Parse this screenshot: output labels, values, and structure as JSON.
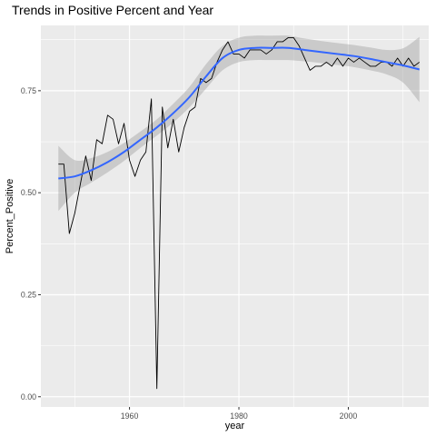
{
  "chart_data": {
    "type": "line",
    "title": "Trends in Positive Percent and Year",
    "xlabel": "year",
    "ylabel": "Percent_Positive",
    "xlim": [
      1943.8,
      2014.7
    ],
    "ylim": [
      -0.025,
      0.91
    ],
    "x_ticks": [
      1960,
      1980,
      2000
    ],
    "x_tick_labels": [
      "1960",
      "1980",
      "2000"
    ],
    "x_minor_ticks": [
      1950,
      1970,
      1990,
      2010
    ],
    "y_ticks": [
      0,
      0.25,
      0.5,
      0.75
    ],
    "y_tick_labels": [
      "0.00",
      "0.25",
      "0.50",
      "0.75"
    ],
    "y_minor_ticks": [
      0.125,
      0.375,
      0.625,
      0.875
    ],
    "grid": true,
    "legend": "none",
    "colors": {
      "panel": "#ebebeb",
      "grid": "#ffffff",
      "observed": "#000000",
      "smooth": "#3366ff",
      "ribbon": "#999999"
    },
    "series": [
      {
        "kind": "observed-line",
        "x": [
          1947,
          1948,
          1949,
          1950,
          1951,
          1952,
          1953,
          1954,
          1955,
          1956,
          1957,
          1958,
          1959,
          1960,
          1961,
          1962,
          1963,
          1964,
          1965,
          1966,
          1967,
          1968,
          1969,
          1970,
          1971,
          1972,
          1973,
          1974,
          1975,
          1976,
          1977,
          1978,
          1979,
          1980,
          1981,
          1982,
          1983,
          1984,
          1985,
          1986,
          1987,
          1988,
          1989,
          1990,
          1991,
          1992,
          1993,
          1994,
          1995,
          1996,
          1997,
          1998,
          1999,
          2000,
          2001,
          2002,
          2003,
          2004,
          2005,
          2006,
          2007,
          2008,
          2009,
          2010,
          2011,
          2012,
          2013
        ],
        "y": [
          0.57,
          0.57,
          0.4,
          0.45,
          0.52,
          0.59,
          0.53,
          0.63,
          0.62,
          0.69,
          0.68,
          0.62,
          0.67,
          0.58,
          0.54,
          0.58,
          0.6,
          0.73,
          0.02,
          0.71,
          0.61,
          0.68,
          0.6,
          0.66,
          0.7,
          0.71,
          0.78,
          0.77,
          0.78,
          0.82,
          0.85,
          0.87,
          0.84,
          0.84,
          0.83,
          0.85,
          0.85,
          0.85,
          0.84,
          0.85,
          0.87,
          0.87,
          0.88,
          0.88,
          0.86,
          0.83,
          0.8,
          0.81,
          0.81,
          0.82,
          0.81,
          0.83,
          0.81,
          0.83,
          0.82,
          0.83,
          0.82,
          0.81,
          0.81,
          0.82,
          0.82,
          0.81,
          0.83,
          0.81,
          0.83,
          0.81,
          0.82
        ]
      },
      {
        "kind": "smooth",
        "x": [
          1947,
          1950,
          1953,
          1956,
          1959,
          1962,
          1965,
          1968,
          1971,
          1974,
          1977,
          1980,
          1983,
          1986,
          1989,
          1992,
          1995,
          1998,
          2001,
          2004,
          2007,
          2010,
          2013
        ],
        "y": [
          0.535,
          0.54,
          0.555,
          0.575,
          0.6,
          0.63,
          0.66,
          0.695,
          0.735,
          0.785,
          0.83,
          0.85,
          0.855,
          0.855,
          0.855,
          0.85,
          0.845,
          0.84,
          0.835,
          0.828,
          0.82,
          0.812,
          0.802
        ],
        "ci_lower": [
          0.455,
          0.5,
          0.525,
          0.55,
          0.578,
          0.61,
          0.64,
          0.672,
          0.71,
          0.755,
          0.8,
          0.82,
          0.825,
          0.825,
          0.825,
          0.822,
          0.818,
          0.813,
          0.808,
          0.8,
          0.79,
          0.77,
          0.722
        ],
        "ci_upper": [
          0.615,
          0.58,
          0.585,
          0.6,
          0.622,
          0.65,
          0.68,
          0.718,
          0.76,
          0.815,
          0.86,
          0.88,
          0.885,
          0.885,
          0.885,
          0.878,
          0.872,
          0.867,
          0.862,
          0.856,
          0.85,
          0.854,
          0.882
        ]
      }
    ]
  }
}
